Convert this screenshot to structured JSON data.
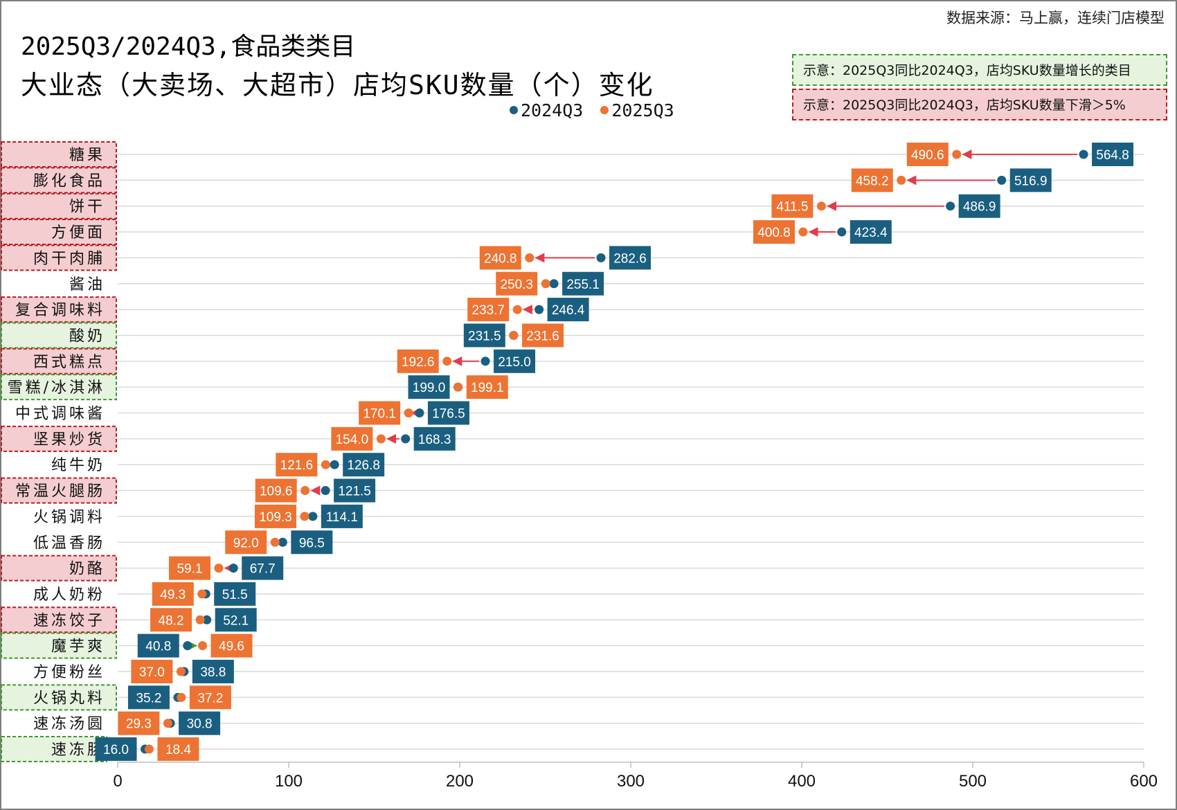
{
  "title_line1": "2025Q3/2024Q3,食品类类目",
  "title_line2": "大业态（大卖场、大超市）店均SKU数量（个）变化",
  "source": "数据来源：马上赢，连续门店模型",
  "notes": {
    "grow": "示意：2025Q3同比2024Q3，店均SKU数量增长的类目",
    "drop": "示意：2025Q3同比2024Q3，店均SKU数量下滑＞5%"
  },
  "colors": {
    "q2024": "#1b5f80",
    "q2025": "#ed7333",
    "arrow_down": "#e23b4b",
    "arrow_up": "#3e9a2c",
    "grow_fill": "#e6f4df",
    "grow_border": "#3e9a2c",
    "drop_fill": "#f4cdd0",
    "drop_border": "#b81c22"
  },
  "chart_data": {
    "type": "dumbbell",
    "title": "2025Q3/2024Q3,食品类类目 大业态（大卖场、大超市）店均SKU数量（个）变化",
    "xlabel": "",
    "ylabel": "",
    "xlim": [
      0,
      600
    ],
    "x_ticks": [
      "0",
      "100",
      "200",
      "300",
      "400",
      "500",
      "600"
    ],
    "legend": [
      "2024Q3",
      "2025Q3"
    ],
    "legend_position": "top",
    "grid": true,
    "categories": [
      "糖果",
      "膨化食品",
      "饼干",
      "方便面",
      "肉干肉脯",
      "酱油",
      "复合调味料",
      "酸奶",
      "西式糕点",
      "雪糕/冰淇淋",
      "中式调味酱",
      "坚果炒货",
      "纯牛奶",
      "常温火腿肠",
      "火锅调料",
      "低温香肠",
      "奶酪",
      "成人奶粉",
      "速冻饺子",
      "魔芋爽",
      "方便粉丝",
      "火锅丸料",
      "速冻汤圆",
      "速冻肠"
    ],
    "series": [
      {
        "name": "2024Q3",
        "values": [
          564.8,
          516.9,
          486.9,
          423.4,
          282.6,
          255.1,
          246.4,
          231.5,
          215.0,
          199.0,
          176.5,
          168.3,
          126.8,
          121.5,
          114.1,
          96.5,
          67.7,
          51.5,
          52.1,
          40.8,
          38.8,
          35.2,
          30.8,
          16.0
        ]
      },
      {
        "name": "2025Q3",
        "values": [
          490.6,
          458.2,
          411.5,
          400.8,
          240.8,
          250.3,
          233.7,
          231.6,
          192.6,
          199.1,
          170.1,
          154.0,
          121.6,
          109.6,
          109.3,
          92.0,
          59.1,
          49.3,
          48.2,
          49.6,
          37.0,
          37.2,
          29.3,
          18.4
        ]
      }
    ],
    "labels_2024": [
      "564.8",
      "516.9",
      "486.9",
      "423.4",
      "282.6",
      "255.1",
      "246.4",
      "231.5",
      "215.0",
      "199.0",
      "176.5",
      "168.3",
      "126.8",
      "121.5",
      "114.1",
      "96.5",
      "67.7",
      "51.5",
      "52.1",
      "40.8",
      "38.8",
      "35.2",
      "30.8",
      "16.0"
    ],
    "labels_2025": [
      "490.6",
      "458.2",
      "411.5",
      "400.8",
      "240.8",
      "250.3",
      "233.7",
      "231.6",
      "192.6",
      "199.1",
      "170.1",
      "154.0",
      "121.6",
      "109.6",
      "109.3",
      "92.0",
      "59.1",
      "49.3",
      "48.2",
      "49.6",
      "37.0",
      "37.2",
      "29.3",
      "18.4"
    ],
    "highlight": [
      "drop",
      "drop",
      "drop",
      "drop",
      "drop",
      "none",
      "drop",
      "grow",
      "drop",
      "grow",
      "none",
      "drop",
      "none",
      "drop",
      "none",
      "none",
      "drop",
      "none",
      "drop",
      "grow",
      "none",
      "grow",
      "none",
      "grow"
    ]
  }
}
